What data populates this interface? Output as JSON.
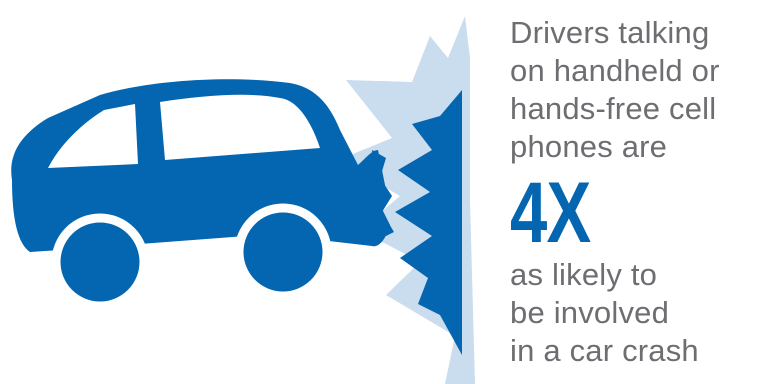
{
  "colors": {
    "accent": "#0466b0",
    "burst": "#c9ddee",
    "text": "#6d6e71",
    "background": "#ffffff"
  },
  "illustration": {
    "car_icon": "car-crash-icon",
    "burst_icon": "impact-burst-icon"
  },
  "message": {
    "lead_lines": [
      "Drivers talking",
      "on handheld or",
      "hands-free cell",
      "phones are"
    ],
    "stat": "4X",
    "tail_lines": [
      "as likely to",
      "be involved",
      "in a car crash"
    ]
  }
}
